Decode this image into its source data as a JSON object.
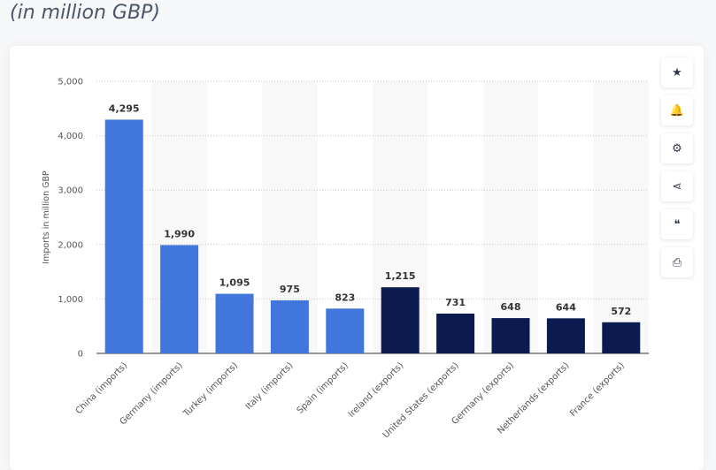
{
  "header": {
    "subtitle": "(in million GBP)"
  },
  "toolbar": [
    {
      "name": "star-icon",
      "glyph": "★"
    },
    {
      "name": "bell-icon",
      "glyph": "🔔"
    },
    {
      "name": "gear-icon",
      "glyph": "⚙"
    },
    {
      "name": "share-icon",
      "glyph": "⋖"
    },
    {
      "name": "quote-icon",
      "glyph": "❝"
    },
    {
      "name": "print-icon",
      "glyph": "⎙"
    }
  ],
  "chart_data": {
    "type": "bar",
    "title": "",
    "xlabel": "",
    "ylabel": "Imports in million GBP",
    "ylim": [
      0,
      5000
    ],
    "yticks": [
      0,
      1000,
      2000,
      3000,
      4000,
      5000
    ],
    "ytick_labels": [
      "0",
      "1,000",
      "2,000",
      "3,000",
      "4,000",
      "5,000"
    ],
    "grid": true,
    "categories": [
      "China (imports)",
      "Germany (imports)",
      "Turkey (imports)",
      "Italy (imports)",
      "Spain (imports)",
      "Ireland (exports)",
      "United States (exports)",
      "Germany (exports)",
      "Netherlands (exports)",
      "France (exports)"
    ],
    "values": [
      4295,
      1990,
      1095,
      975,
      823,
      1215,
      731,
      648,
      644,
      572
    ],
    "value_labels": [
      "4,295",
      "1,990",
      "1,095",
      "975",
      "823",
      "1,215",
      "731",
      "648",
      "644",
      "572"
    ],
    "group": [
      "imports",
      "imports",
      "imports",
      "imports",
      "imports",
      "exports",
      "exports",
      "exports",
      "exports",
      "exports"
    ],
    "colors": {
      "imports": "#4176dc",
      "exports": "#0b1b4f"
    }
  }
}
